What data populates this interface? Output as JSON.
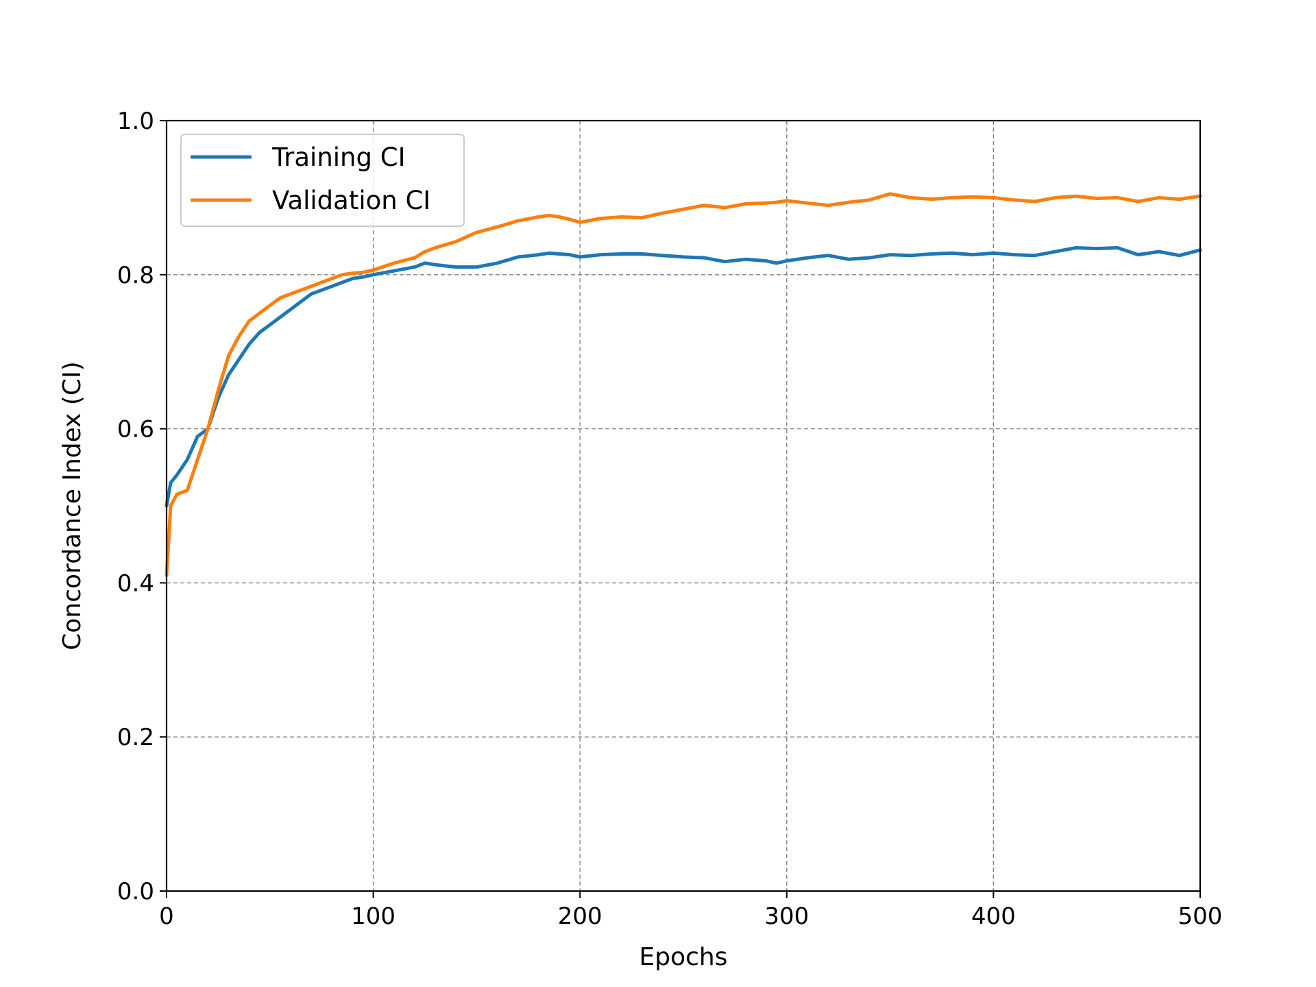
{
  "chart_data": {
    "type": "line",
    "title": "",
    "xlabel": "Epochs",
    "ylabel": "Concordance Index (CI)",
    "xlim": [
      0,
      500
    ],
    "ylim": [
      0.0,
      1.0
    ],
    "x_ticks": [
      0,
      100,
      200,
      300,
      400,
      500
    ],
    "y_ticks": [
      0.0,
      0.2,
      0.4,
      0.6,
      0.8,
      1.0
    ],
    "x_tick_labels": [
      "0",
      "100",
      "200",
      "300",
      "400",
      "500"
    ],
    "y_tick_labels": [
      "0.0",
      "0.2",
      "0.4",
      "0.6",
      "0.8",
      "1.0"
    ],
    "grid": true,
    "legend_position": "top-left",
    "x": [
      0,
      2,
      5,
      10,
      15,
      20,
      25,
      30,
      35,
      40,
      45,
      50,
      55,
      60,
      65,
      70,
      75,
      80,
      85,
      90,
      95,
      100,
      110,
      120,
      125,
      130,
      140,
      150,
      160,
      170,
      180,
      185,
      190,
      195,
      200,
      210,
      220,
      230,
      240,
      250,
      260,
      270,
      280,
      290,
      295,
      300,
      310,
      320,
      330,
      340,
      350,
      360,
      370,
      380,
      390,
      400,
      410,
      420,
      430,
      440,
      450,
      460,
      470,
      480,
      490,
      500
    ],
    "series": [
      {
        "name": "Training CI",
        "color": "#1f77b4",
        "values": [
          0.5,
          0.53,
          0.54,
          0.56,
          0.59,
          0.6,
          0.64,
          0.67,
          0.69,
          0.71,
          0.725,
          0.735,
          0.745,
          0.755,
          0.765,
          0.775,
          0.78,
          0.785,
          0.79,
          0.795,
          0.797,
          0.8,
          0.805,
          0.81,
          0.815,
          0.813,
          0.81,
          0.81,
          0.815,
          0.823,
          0.826,
          0.828,
          0.827,
          0.826,
          0.823,
          0.826,
          0.827,
          0.827,
          0.825,
          0.823,
          0.822,
          0.817,
          0.82,
          0.818,
          0.815,
          0.818,
          0.822,
          0.825,
          0.82,
          0.822,
          0.826,
          0.825,
          0.827,
          0.828,
          0.826,
          0.828,
          0.826,
          0.825,
          0.83,
          0.835,
          0.834,
          0.835,
          0.826,
          0.83,
          0.825,
          0.832
        ]
      },
      {
        "name": "Validation CI",
        "color": "#ff7f0e",
        "values": [
          0.41,
          0.5,
          0.515,
          0.52,
          0.56,
          0.6,
          0.65,
          0.695,
          0.72,
          0.74,
          0.75,
          0.76,
          0.77,
          0.775,
          0.78,
          0.785,
          0.79,
          0.795,
          0.8,
          0.802,
          0.803,
          0.806,
          0.815,
          0.822,
          0.83,
          0.835,
          0.843,
          0.855,
          0.862,
          0.87,
          0.875,
          0.877,
          0.875,
          0.872,
          0.868,
          0.873,
          0.875,
          0.874,
          0.88,
          0.885,
          0.89,
          0.887,
          0.892,
          0.893,
          0.894,
          0.896,
          0.893,
          0.89,
          0.894,
          0.897,
          0.905,
          0.9,
          0.898,
          0.9,
          0.901,
          0.9,
          0.897,
          0.895,
          0.9,
          0.902,
          0.899,
          0.9,
          0.895,
          0.9,
          0.898,
          0.902
        ]
      }
    ]
  }
}
